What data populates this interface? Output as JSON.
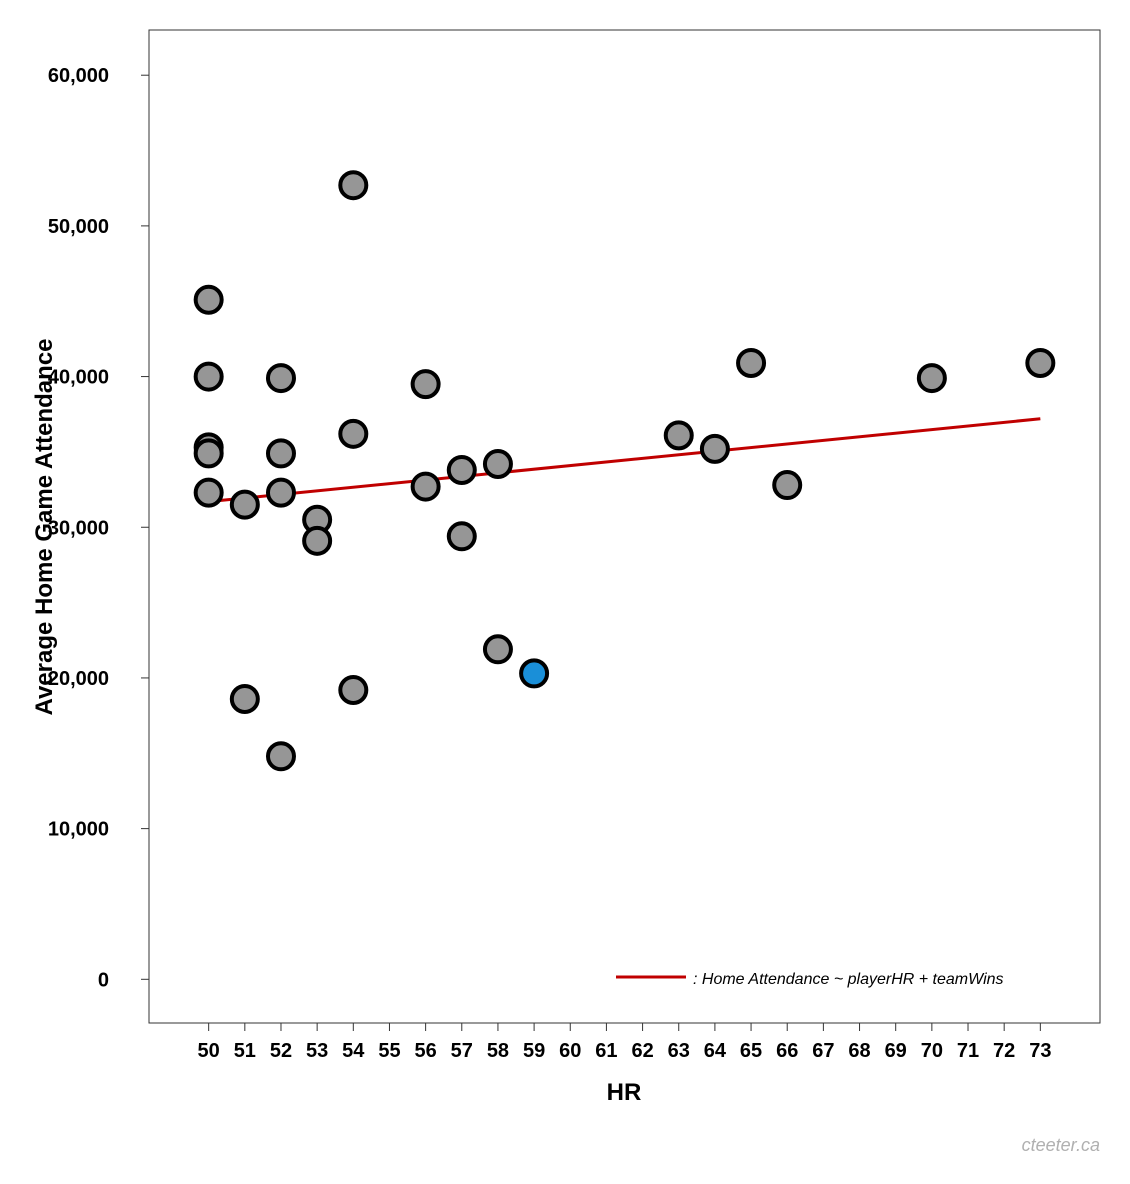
{
  "chart_data": {
    "type": "scatter",
    "title": "",
    "xlabel": "HR",
    "ylabel": "Average Home Game Attendance",
    "x_ticks": [
      50,
      51,
      52,
      53,
      54,
      55,
      56,
      57,
      58,
      59,
      60,
      61,
      62,
      63,
      64,
      65,
      66,
      67,
      68,
      69,
      70,
      71,
      72,
      73
    ],
    "y_ticks": [
      0,
      10000,
      20000,
      30000,
      40000,
      50000,
      60000
    ],
    "y_tick_labels": [
      "0",
      "10,000",
      "20,000",
      "30,000",
      "40,000",
      "50,000",
      "60,000"
    ],
    "xlim": [
      48.35,
      74.65
    ],
    "ylim": [
      -2900,
      63000
    ],
    "grid": false,
    "points": [
      {
        "x": 50,
        "y": 45100
      },
      {
        "x": 50,
        "y": 40000
      },
      {
        "x": 50,
        "y": 35300
      },
      {
        "x": 50,
        "y": 34900
      },
      {
        "x": 50,
        "y": 32300
      },
      {
        "x": 51,
        "y": 31500
      },
      {
        "x": 51,
        "y": 18600
      },
      {
        "x": 52,
        "y": 39900
      },
      {
        "x": 52,
        "y": 34900
      },
      {
        "x": 52,
        "y": 32300
      },
      {
        "x": 52,
        "y": 14800
      },
      {
        "x": 53,
        "y": 30500
      },
      {
        "x": 53,
        "y": 29100
      },
      {
        "x": 54,
        "y": 52700
      },
      {
        "x": 54,
        "y": 36200
      },
      {
        "x": 54,
        "y": 19200
      },
      {
        "x": 56,
        "y": 39500
      },
      {
        "x": 56,
        "y": 32700
      },
      {
        "x": 57,
        "y": 33800
      },
      {
        "x": 57,
        "y": 29400
      },
      {
        "x": 58,
        "y": 34200
      },
      {
        "x": 58,
        "y": 21900
      },
      {
        "x": 59,
        "y": 20300,
        "highlight": true
      },
      {
        "x": 63,
        "y": 36100
      },
      {
        "x": 64,
        "y": 35200
      },
      {
        "x": 65,
        "y": 40900
      },
      {
        "x": 66,
        "y": 32800
      },
      {
        "x": 70,
        "y": 39900
      },
      {
        "x": 73,
        "y": 40900
      }
    ],
    "point_fill": "#969696",
    "point_highlight_fill": "#1a8fd8",
    "point_stroke": "#000000",
    "regression_line": {
      "label": ": Home Attendance ~ playerHR + teamWins",
      "color": "#c00000",
      "x": [
        50,
        73
      ],
      "y": [
        31700,
        37200
      ]
    },
    "legend_position": "bottom-right"
  },
  "watermark": "cteeter.ca"
}
